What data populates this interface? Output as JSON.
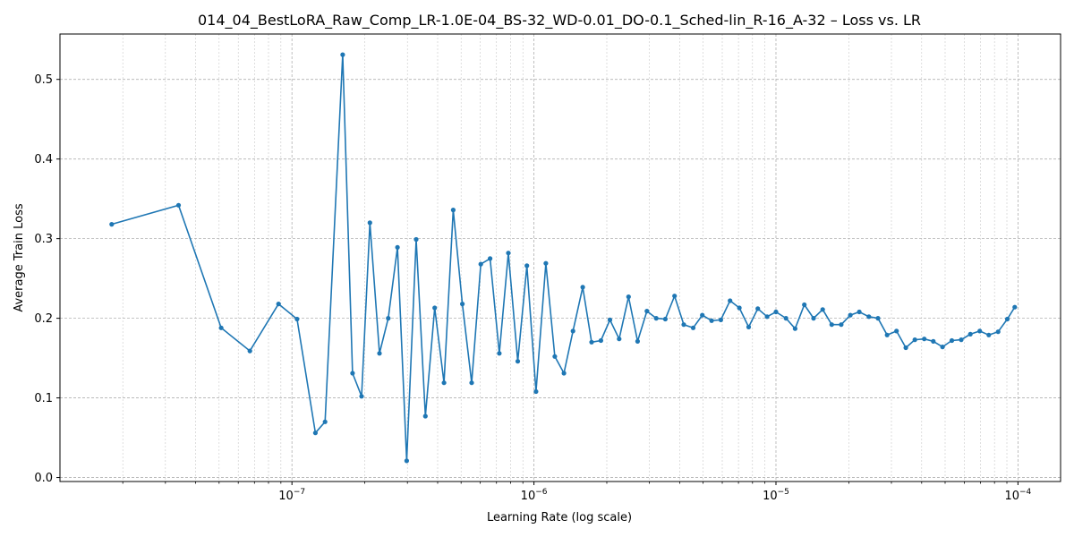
{
  "chart_data": {
    "type": "line",
    "title": "014_04_BestLoRA_Raw_Comp_LR-1.0E-04_BS-32_WD-0.01_DO-0.1_Sched-lin_R-16_A-32 – Loss vs. LR",
    "xlabel": "Learning Rate (log scale)",
    "ylabel": "Average Train Loss",
    "xscale": "log",
    "xlim": [
      1.1e-08,
      0.00015
    ],
    "ylim": [
      -0.005,
      0.557
    ],
    "grid": true,
    "x_major_ticks": [
      {
        "value": 1e-07,
        "base": "10",
        "exp": "−7"
      },
      {
        "value": 1e-06,
        "base": "10",
        "exp": "−6"
      },
      {
        "value": 1e-05,
        "base": "10",
        "exp": "−5"
      },
      {
        "value": 0.0001,
        "base": "10",
        "exp": "−4"
      }
    ],
    "y_ticks": [
      {
        "value": 0.0,
        "label": "0.0"
      },
      {
        "value": 0.1,
        "label": "0.1"
      },
      {
        "value": 0.2,
        "label": "0.2"
      },
      {
        "value": 0.3,
        "label": "0.3"
      },
      {
        "value": 0.4,
        "label": "0.4"
      },
      {
        "value": 0.5,
        "label": "0.5"
      }
    ],
    "series": [
      {
        "color": "#1f77b4",
        "x": [
          1.8e-08,
          3.4e-08,
          5.1e-08,
          6.7e-08,
          8.8e-08,
          1.05e-07,
          1.25e-07,
          1.37e-07,
          1.62e-07,
          1.78e-07,
          1.94e-07,
          2.1e-07,
          2.3e-07,
          2.5e-07,
          2.73e-07,
          2.98e-07,
          3.26e-07,
          3.56e-07,
          3.89e-07,
          4.25e-07,
          4.64e-07,
          5.06e-07,
          5.53e-07,
          6.03e-07,
          6.59e-07,
          7.19e-07,
          7.84e-07,
          8.57e-07,
          9.35e-07,
          1.02e-06,
          1.12e-06,
          1.22e-06,
          1.33e-06,
          1.45e-06,
          1.59e-06,
          1.73e-06,
          1.89e-06,
          2.06e-06,
          2.25e-06,
          2.46e-06,
          2.68e-06,
          2.93e-06,
          3.2e-06,
          3.49e-06,
          3.81e-06,
          4.16e-06,
          4.55e-06,
          4.96e-06,
          5.42e-06,
          5.92e-06,
          6.46e-06,
          7.06e-06,
          7.71e-06,
          8.41e-06,
          9.19e-06,
          1e-05,
          1.1e-05,
          1.2e-05,
          1.31e-05,
          1.43e-05,
          1.56e-05,
          1.7e-05,
          1.86e-05,
          2.03e-05,
          2.21e-05,
          2.42e-05,
          2.64e-05,
          2.88e-05,
          3.15e-05,
          3.44e-05,
          3.75e-05,
          4.1e-05,
          4.47e-05,
          4.88e-05,
          5.33e-05,
          5.83e-05,
          6.36e-05,
          6.95e-05,
          7.58e-05,
          8.28e-05,
          9.04e-05,
          9.7e-05
        ],
        "y": [
          0.318,
          0.342,
          0.188,
          0.159,
          0.218,
          0.199,
          0.056,
          0.07,
          0.531,
          0.131,
          0.102,
          0.32,
          0.156,
          0.2,
          0.289,
          0.021,
          0.299,
          0.077,
          0.213,
          0.119,
          0.336,
          0.218,
          0.119,
          0.268,
          0.275,
          0.156,
          0.282,
          0.146,
          0.266,
          0.108,
          0.269,
          0.152,
          0.131,
          0.184,
          0.239,
          0.17,
          0.172,
          0.198,
          0.174,
          0.227,
          0.171,
          0.209,
          0.2,
          0.199,
          0.228,
          0.192,
          0.188,
          0.204,
          0.197,
          0.198,
          0.222,
          0.213,
          0.189,
          0.212,
          0.202,
          0.208,
          0.2,
          0.187,
          0.217,
          0.2,
          0.211,
          0.192,
          0.192,
          0.204,
          0.208,
          0.202,
          0.2,
          0.179,
          0.184,
          0.163,
          0.173,
          0.174,
          0.171,
          0.164,
          0.172,
          0.173,
          0.18,
          0.184,
          0.179,
          0.183,
          0.199,
          0.214
        ]
      }
    ]
  }
}
